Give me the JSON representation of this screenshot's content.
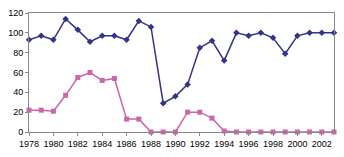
{
  "chart_data": {
    "type": "line",
    "x": [
      1978,
      1979,
      1980,
      1981,
      1982,
      1983,
      1984,
      1985,
      1986,
      1987,
      1988,
      1989,
      1990,
      1991,
      1992,
      1993,
      1994,
      1995,
      1996,
      1997,
      1998,
      1999,
      2000,
      2001,
      2002,
      2003
    ],
    "series": [
      {
        "color": "#33338a",
        "marker": "diamond",
        "values": [
          93,
          97,
          93,
          114,
          103,
          91,
          97,
          97,
          93,
          112,
          106,
          29,
          36,
          48,
          85,
          92,
          72,
          100,
          97,
          100,
          95,
          79,
          97,
          100,
          100,
          100
        ]
      },
      {
        "color": "#cc66aa",
        "marker": "square",
        "values": [
          22,
          22,
          21,
          37,
          55,
          60,
          52,
          54,
          13,
          13,
          0,
          0,
          0,
          20,
          20,
          14,
          1,
          0,
          0,
          0,
          0,
          0,
          0,
          0,
          0,
          0
        ]
      }
    ],
    "xlim": [
      1978,
      2003
    ],
    "xticks": [
      1978,
      1980,
      1982,
      1984,
      1986,
      1988,
      1990,
      1992,
      1994,
      1996,
      1998,
      2000,
      2002
    ],
    "ylim": [
      0,
      120
    ],
    "yticks": [
      0,
      20,
      40,
      60,
      80,
      100,
      120
    ],
    "grid": false
  }
}
